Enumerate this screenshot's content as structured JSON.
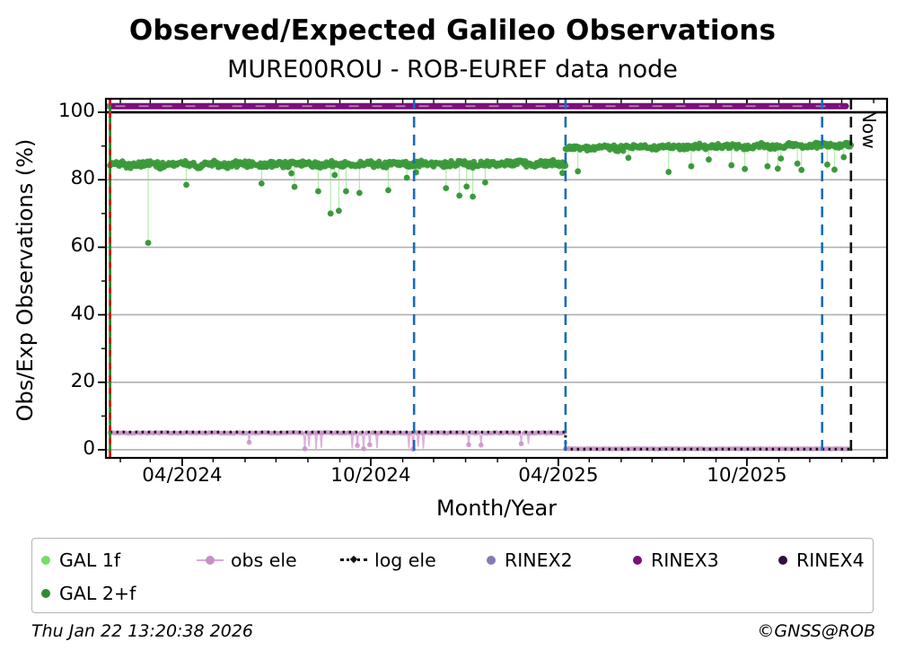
{
  "title": "Observed/Expected Galileo Observations",
  "subtitle": "MURE00ROU - ROB-EUREF data node",
  "footer": {
    "timestamp": "Thu Jan 22 13:20:38 2026",
    "credit": "©GNSS@ROB"
  },
  "chart_data": {
    "type": "scatter",
    "title": "Observed/Expected Galileo Observations",
    "subtitle": "MURE00ROU - ROB-EUREF data node",
    "xlabel": "Month/Year",
    "ylabel": "Obs/Exp Observations (%)",
    "x_domain": [
      "2024-01-18",
      "2026-02-14"
    ],
    "ylim": [
      -2.4,
      104.0
    ],
    "grid": true,
    "now_label": "Now",
    "x_ticks": [
      {
        "date": "2024-04-01",
        "label": "04/2024"
      },
      {
        "date": "2024-10-01",
        "label": "10/2024"
      },
      {
        "date": "2025-04-01",
        "label": "04/2025"
      },
      {
        "date": "2025-10-01",
        "label": "10/2025"
      }
    ],
    "y_ticks": [
      {
        "value": 0,
        "label": "0"
      },
      {
        "value": 20,
        "label": "20"
      },
      {
        "value": 40,
        "label": "40"
      },
      {
        "value": 60,
        "label": "60"
      },
      {
        "value": 80,
        "label": "80"
      },
      {
        "value": 100,
        "label": "100"
      }
    ],
    "y_gridlines": [
      0,
      20,
      40,
      60,
      80
    ],
    "hline_100": {
      "value": 100,
      "color": "#000000"
    },
    "colors": {
      "grid": "#b0b0b0",
      "frame": "#000000",
      "blue_marker": "#1b6cb5",
      "red_marker": "#d11a1a",
      "green_marker": "#1f8c1f"
    },
    "markers": [
      {
        "date": "2024-01-22",
        "style": "green-red",
        "name": "station-start"
      },
      {
        "date": "2024-11-12",
        "style": "blue-dashed",
        "name": "event-1"
      },
      {
        "date": "2025-04-08",
        "style": "blue-dashed",
        "name": "event-2"
      },
      {
        "date": "2025-12-13",
        "style": "blue-dashed",
        "name": "event-3"
      },
      {
        "date": "2026-01-10",
        "style": "black-dashed",
        "name": "now",
        "label": "Now"
      }
    ],
    "series": [
      {
        "name": "GAL 2+f",
        "color": "#3a9a3a",
        "kind": "scatter-band",
        "segments": [
          {
            "from": "2024-01-22",
            "to": "2025-04-08",
            "mean": 84.6,
            "jitter": 1.1,
            "drift": 0.4
          },
          {
            "from": "2025-04-08",
            "to": "2026-01-10",
            "mean": 89.8,
            "jitter": 0.9,
            "drift": 0.8
          }
        ],
        "outliers": [
          [
            "2024-02-28",
            61.3
          ],
          [
            "2024-04-05",
            78.5
          ],
          [
            "2024-06-17",
            78.9
          ],
          [
            "2024-07-16",
            81.9
          ],
          [
            "2024-07-19",
            77.9
          ],
          [
            "2024-08-11",
            76.6
          ],
          [
            "2024-08-23",
            70.0
          ],
          [
            "2024-08-27",
            81.4
          ],
          [
            "2024-08-31",
            70.8
          ],
          [
            "2024-09-07",
            76.6
          ],
          [
            "2024-09-20",
            76.1
          ],
          [
            "2024-10-18",
            76.9
          ],
          [
            "2024-11-05",
            80.6
          ],
          [
            "2024-11-14",
            82.2
          ],
          [
            "2024-12-13",
            77.5
          ],
          [
            "2024-12-26",
            75.3
          ],
          [
            "2025-01-02",
            78.0
          ],
          [
            "2025-01-08",
            75.0
          ],
          [
            "2025-01-20",
            79.2
          ],
          [
            "2025-04-05",
            82.0
          ],
          [
            "2025-04-20",
            82.5
          ],
          [
            "2025-06-08",
            86.5
          ],
          [
            "2025-07-17",
            82.3
          ],
          [
            "2025-08-08",
            84.0
          ],
          [
            "2025-08-25",
            86.0
          ],
          [
            "2025-09-16",
            84.3
          ],
          [
            "2025-09-29",
            83.2
          ],
          [
            "2025-10-21",
            84.0
          ],
          [
            "2025-10-31",
            83.3
          ],
          [
            "2025-11-03",
            86.3
          ],
          [
            "2025-11-19",
            84.8
          ],
          [
            "2025-11-23",
            82.9
          ],
          [
            "2025-12-18",
            84.5
          ],
          [
            "2025-12-25",
            83.0
          ],
          [
            "2026-01-03",
            86.7
          ]
        ]
      },
      {
        "name": "GAL 1f",
        "color": "#77dd66",
        "kind": "droplines",
        "note": "mostly hidden beneath GAL 2+f; visible as pale drop-lines to outliers"
      },
      {
        "name": "obs ele",
        "color": "#c78fc7",
        "line_color": "#d8aad8",
        "kind": "line-markers",
        "segments": [
          {
            "from": "2024-01-22",
            "to": "2025-04-08",
            "value": 5.0
          },
          {
            "from": "2025-04-08",
            "to": "2026-01-10",
            "value": 0.3
          }
        ],
        "dips": [
          [
            "2024-06-05",
            2.2
          ],
          [
            "2024-07-29",
            0.3
          ],
          [
            "2024-08-02",
            1.0
          ],
          [
            "2024-08-09",
            0.2
          ],
          [
            "2024-08-14",
            0.6
          ],
          [
            "2024-09-13",
            0.4
          ],
          [
            "2024-09-18",
            1.3
          ],
          [
            "2024-09-24",
            0.3
          ],
          [
            "2024-09-30",
            1.5
          ],
          [
            "2024-10-07",
            0.5
          ],
          [
            "2024-11-07",
            0.4
          ],
          [
            "2024-11-11",
            0.2
          ],
          [
            "2024-11-16",
            0.9
          ],
          [
            "2024-11-21",
            0.4
          ],
          [
            "2025-01-04",
            1.5
          ],
          [
            "2025-01-16",
            1.4
          ],
          [
            "2025-02-24",
            1.8
          ],
          [
            "2025-03-03",
            1.7
          ]
        ]
      },
      {
        "name": "log ele",
        "color": "#111111",
        "kind": "dotted-step",
        "points": [
          [
            "2024-01-22",
            5.25
          ],
          [
            "2025-04-08",
            5.25
          ],
          [
            "2025-04-08",
            0.2
          ],
          [
            "2026-01-10",
            0.2
          ]
        ]
      },
      {
        "name": "RINEX2",
        "color": "#8679b9",
        "kind": "points",
        "points": [
          [
            "2024-01-20",
            101.8
          ]
        ]
      },
      {
        "name": "RINEX3",
        "color": "#7b0f7b",
        "kind": "thick-line",
        "value": 101.8,
        "points": [
          [
            "2024-01-22",
            101.8
          ],
          [
            "2026-01-05",
            101.8
          ]
        ]
      },
      {
        "name": "RINEX4",
        "color": "#30103c",
        "kind": "points",
        "points": []
      }
    ],
    "legend": [
      {
        "label": "GAL 1f",
        "color": "#77dd66",
        "marker": "dot"
      },
      {
        "label": "obs ele",
        "color": "#c78fc7",
        "line": "#d8aad8",
        "marker": "line-dot"
      },
      {
        "label": "log ele",
        "color": "#111111",
        "marker": "dotted-line"
      },
      {
        "label": "RINEX2",
        "color": "#8679b9",
        "marker": "dot"
      },
      {
        "label": "RINEX3",
        "color": "#7b0f7b",
        "marker": "dot"
      },
      {
        "label": "RINEX4",
        "color": "#30103c",
        "marker": "dot"
      },
      {
        "label": "GAL 2+f",
        "color": "#2e8b2e",
        "marker": "dot"
      }
    ]
  }
}
